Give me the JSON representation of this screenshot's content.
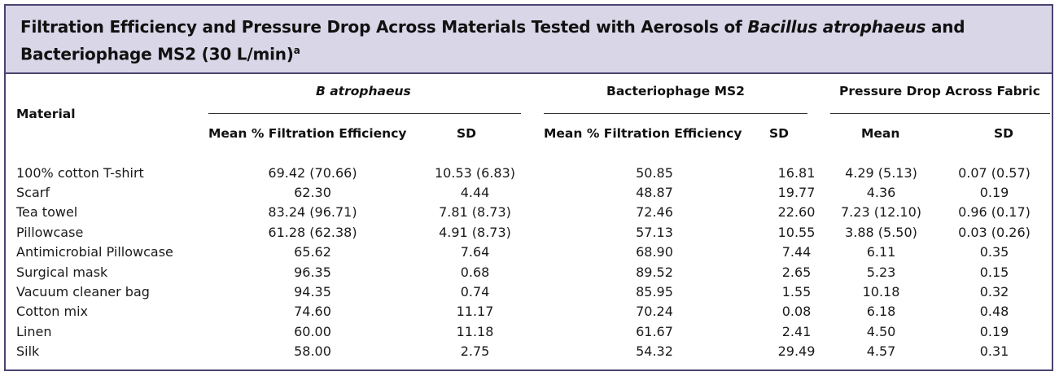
{
  "title": {
    "part1": "Filtration Efficiency and Pressure Drop Across Materials Tested with Aerosols of ",
    "italic": "Bacillus atrophaeus",
    "part2": " and Bacteriophage MS2 (30 L/min)",
    "superscript": "a"
  },
  "header": {
    "material": "Material",
    "group_b": "B atrophaeus",
    "group_ms2": "Bacteriophage MS2",
    "group_pressure": "Pressure Drop Across Fabric",
    "b_mean": "Mean % Filtration Efficiency",
    "b_sd": "SD",
    "ms2_mean": "Mean % Filtration Efficiency",
    "ms2_sd": "SD",
    "p_mean": "Mean",
    "p_sd": "SD"
  },
  "rows": [
    {
      "material": "100% cotton T-shirt",
      "b_mean": "69.42 (70.66)",
      "b_sd": "10.53 (6.83)",
      "ms2_mean": "50.85",
      "ms2_sd": "16.81",
      "p_mean": "4.29 (5.13)",
      "p_sd": "0.07 (0.57)"
    },
    {
      "material": "Scarf",
      "b_mean": "62.30",
      "b_sd": "4.44",
      "ms2_mean": "48.87",
      "ms2_sd": "19.77",
      "p_mean": "4.36",
      "p_sd": "0.19"
    },
    {
      "material": "Tea towel",
      "b_mean": "83.24 (96.71)",
      "b_sd": "7.81 (8.73)",
      "ms2_mean": "72.46",
      "ms2_sd": "22.60",
      "p_mean": "7.23 (12.10)",
      "p_sd": "0.96 (0.17)"
    },
    {
      "material": "Pillowcase",
      "b_mean": "61.28 (62.38)",
      "b_sd": "4.91 (8.73)",
      "ms2_mean": "57.13",
      "ms2_sd": "10.55",
      "p_mean": "3.88 (5.50)",
      "p_sd": "0.03 (0.26)"
    },
    {
      "material": "Antimicrobial Pillowcase",
      "b_mean": "65.62",
      "b_sd": "7.64",
      "ms2_mean": "68.90",
      "ms2_sd": "7.44",
      "p_mean": "6.11",
      "p_sd": "0.35"
    },
    {
      "material": "Surgical mask",
      "b_mean": "96.35",
      "b_sd": "0.68",
      "ms2_mean": "89.52",
      "ms2_sd": "2.65",
      "p_mean": "5.23",
      "p_sd": "0.15"
    },
    {
      "material": "Vacuum cleaner bag",
      "b_mean": "94.35",
      "b_sd": "0.74",
      "ms2_mean": "85.95",
      "ms2_sd": "1.55",
      "p_mean": "10.18",
      "p_sd": "0.32"
    },
    {
      "material": "Cotton mix",
      "b_mean": "74.60",
      "b_sd": "11.17",
      "ms2_mean": "70.24",
      "ms2_sd": "0.08",
      "p_mean": "6.18",
      "p_sd": "0.48"
    },
    {
      "material": "Linen",
      "b_mean": "60.00",
      "b_sd": "11.18",
      "ms2_mean": "61.67",
      "ms2_sd": "2.41",
      "p_mean": "4.50",
      "p_sd": "0.19"
    },
    {
      "material": "Silk",
      "b_mean": "58.00",
      "b_sd": "2.75",
      "ms2_mean": "54.32",
      "ms2_sd": "29.49",
      "p_mean": "4.57",
      "p_sd": "0.31"
    }
  ]
}
